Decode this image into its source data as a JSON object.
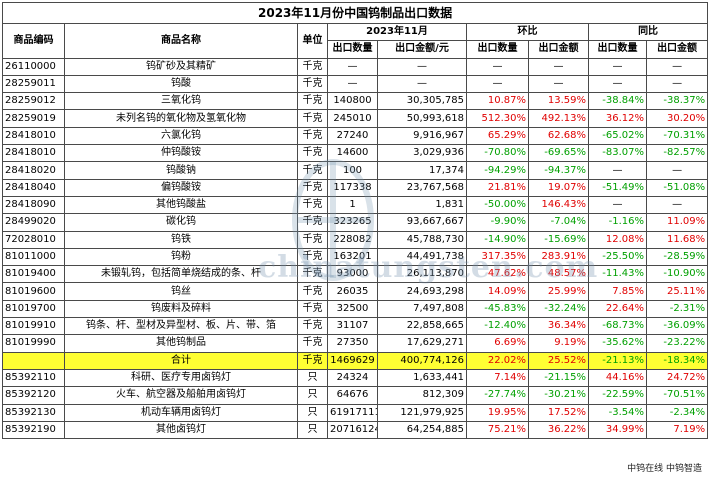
{
  "title": "2023年11月份中国钨制品出口数据",
  "headers": {
    "code": "商品编码",
    "name": "商品名称",
    "unit": "单位",
    "period": "2023年11月",
    "mom": "环比",
    "yoy": "同比",
    "qty": "出口数量",
    "amount": "出口金额/元",
    "mom_qty": "出口数量",
    "mom_amount": "出口金额",
    "yoy_qty": "出口数量",
    "yoy_amount": "出口金额"
  },
  "rows": [
    {
      "code": "26110000",
      "name": "钨矿砂及其精矿",
      "unit": "千克",
      "qty": "—",
      "amount": "—",
      "mom_qty": "—",
      "mom_amount": "—",
      "yoy_qty": "—",
      "yoy_amount": "—"
    },
    {
      "code": "28259011",
      "name": "钨酸",
      "unit": "千克",
      "qty": "—",
      "amount": "—",
      "mom_qty": "—",
      "mom_amount": "—",
      "yoy_qty": "—",
      "yoy_amount": "—"
    },
    {
      "code": "28259012",
      "name": "三氧化钨",
      "unit": "千克",
      "qty": "140800",
      "amount": "30,305,785",
      "mom_qty": "10.87%",
      "mom_amount": "13.59%",
      "yoy_qty": "-38.84%",
      "yoy_amount": "-38.37%"
    },
    {
      "code": "28259019",
      "name": "未列名钨的氧化物及氢氧化物",
      "unit": "千克",
      "qty": "245010",
      "amount": "50,993,618",
      "mom_qty": "512.30%",
      "mom_amount": "492.13%",
      "yoy_qty": "36.12%",
      "yoy_amount": "30.20%"
    },
    {
      "code": "28418010",
      "name": "六氯化钨",
      "unit": "千克",
      "qty": "27240",
      "amount": "9,916,967",
      "mom_qty": "65.29%",
      "mom_amount": "62.68%",
      "yoy_qty": "-65.02%",
      "yoy_amount": "-70.31%"
    },
    {
      "code": "28418010",
      "name": "仲钨酸铵",
      "unit": "千克",
      "qty": "14600",
      "amount": "3,029,936",
      "mom_qty": "-70.80%",
      "mom_amount": "-69.65%",
      "yoy_qty": "-83.07%",
      "yoy_amount": "-82.57%"
    },
    {
      "code": "28418020",
      "name": "钨酸钠",
      "unit": "千克",
      "qty": "100",
      "amount": "17,374",
      "mom_qty": "-94.29%",
      "mom_amount": "-94.37%",
      "yoy_qty": "—",
      "yoy_amount": "—"
    },
    {
      "code": "28418040",
      "name": "偏钨酸铵",
      "unit": "千克",
      "qty": "117338",
      "amount": "23,767,568",
      "mom_qty": "21.81%",
      "mom_amount": "19.07%",
      "yoy_qty": "-51.49%",
      "yoy_amount": "-51.08%"
    },
    {
      "code": "28418090",
      "name": "其他钨酸盐",
      "unit": "千克",
      "qty": "1",
      "amount": "1,831",
      "mom_qty": "-50.00%",
      "mom_amount": "146.43%",
      "yoy_qty": "—",
      "yoy_amount": "—"
    },
    {
      "code": "28499020",
      "name": "碳化钨",
      "unit": "千克",
      "qty": "323265",
      "amount": "93,667,667",
      "mom_qty": "-9.90%",
      "mom_amount": "-7.04%",
      "yoy_qty": "-1.16%",
      "yoy_amount": "11.09%"
    },
    {
      "code": "72028010",
      "name": "钨铁",
      "unit": "千克",
      "qty": "228082",
      "amount": "45,788,730",
      "mom_qty": "-14.90%",
      "mom_amount": "-15.69%",
      "yoy_qty": "12.08%",
      "yoy_amount": "11.68%"
    },
    {
      "code": "81011000",
      "name": "钨粉",
      "unit": "千克",
      "qty": "163201",
      "amount": "44,491,738",
      "mom_qty": "317.35%",
      "mom_amount": "283.91%",
      "yoy_qty": "-25.50%",
      "yoy_amount": "-28.59%"
    },
    {
      "code": "81019400",
      "name": "未锻轧钨，包括简单烧结成的条、杆",
      "unit": "千克",
      "qty": "93000",
      "amount": "26,113,870",
      "mom_qty": "47.62%",
      "mom_amount": "48.57%",
      "yoy_qty": "-11.43%",
      "yoy_amount": "-10.90%"
    },
    {
      "code": "81019600",
      "name": "钨丝",
      "unit": "千克",
      "qty": "26035",
      "amount": "24,693,298",
      "mom_qty": "14.09%",
      "mom_amount": "25.99%",
      "yoy_qty": "7.85%",
      "yoy_amount": "25.11%"
    },
    {
      "code": "81019700",
      "name": "钨废料及碎料",
      "unit": "千克",
      "qty": "32500",
      "amount": "7,497,808",
      "mom_qty": "-45.83%",
      "mom_amount": "-32.24%",
      "yoy_qty": "22.64%",
      "yoy_amount": "-2.31%"
    },
    {
      "code": "81019910",
      "name": "钨条、杆、型材及异型材、板、片、带、箔",
      "unit": "千克",
      "qty": "31107",
      "amount": "22,858,665",
      "mom_qty": "-12.40%",
      "mom_amount": "36.34%",
      "yoy_qty": "-68.73%",
      "yoy_amount": "-36.09%"
    },
    {
      "code": "81019990",
      "name": "其他钨制品",
      "unit": "千克",
      "qty": "27350",
      "amount": "17,629,271",
      "mom_qty": "6.69%",
      "mom_amount": "9.19%",
      "yoy_qty": "-35.62%",
      "yoy_amount": "-23.22%"
    }
  ],
  "total": {
    "code": "",
    "name": "合计",
    "unit": "千克",
    "qty": "1469629",
    "amount": "400,774,126",
    "mom_qty": "22.02%",
    "mom_amount": "25.52%",
    "yoy_qty": "-21.13%",
    "yoy_amount": "-18.34%"
  },
  "lamp_rows": [
    {
      "code": "85392110",
      "name": "科研、医疗专用卤钨灯",
      "unit": "只",
      "qty": "24324",
      "amount": "1,633,441",
      "mom_qty": "7.14%",
      "mom_amount": "-21.15%",
      "yoy_qty": "44.16%",
      "yoy_amount": "24.72%"
    },
    {
      "code": "85392120",
      "name": "火车、航空器及船舶用卤钨灯",
      "unit": "只",
      "qty": "64676",
      "amount": "812,309",
      "mom_qty": "-27.74%",
      "mom_amount": "-30.21%",
      "yoy_qty": "-22.59%",
      "yoy_amount": "-70.51%"
    },
    {
      "code": "85392130",
      "name": "机动车辆用卤钨灯",
      "unit": "只",
      "qty": "61917111",
      "amount": "121,979,925",
      "mom_qty": "19.95%",
      "mom_amount": "17.52%",
      "yoy_qty": "-3.54%",
      "yoy_amount": "-2.34%"
    },
    {
      "code": "85392190",
      "name": "其他卤钨灯",
      "unit": "只",
      "qty": "20716124",
      "amount": "64,254,885",
      "mom_qty": "75.21%",
      "mom_amount": "36.22%",
      "yoy_qty": "34.99%",
      "yoy_amount": "7.19%"
    }
  ],
  "watermark": "chinatungsten.com",
  "footer": "中钨在线 中钨智造",
  "colors": {
    "positive": "#e00000",
    "negative": "#00a000",
    "total_highlight": "#ffff33"
  }
}
